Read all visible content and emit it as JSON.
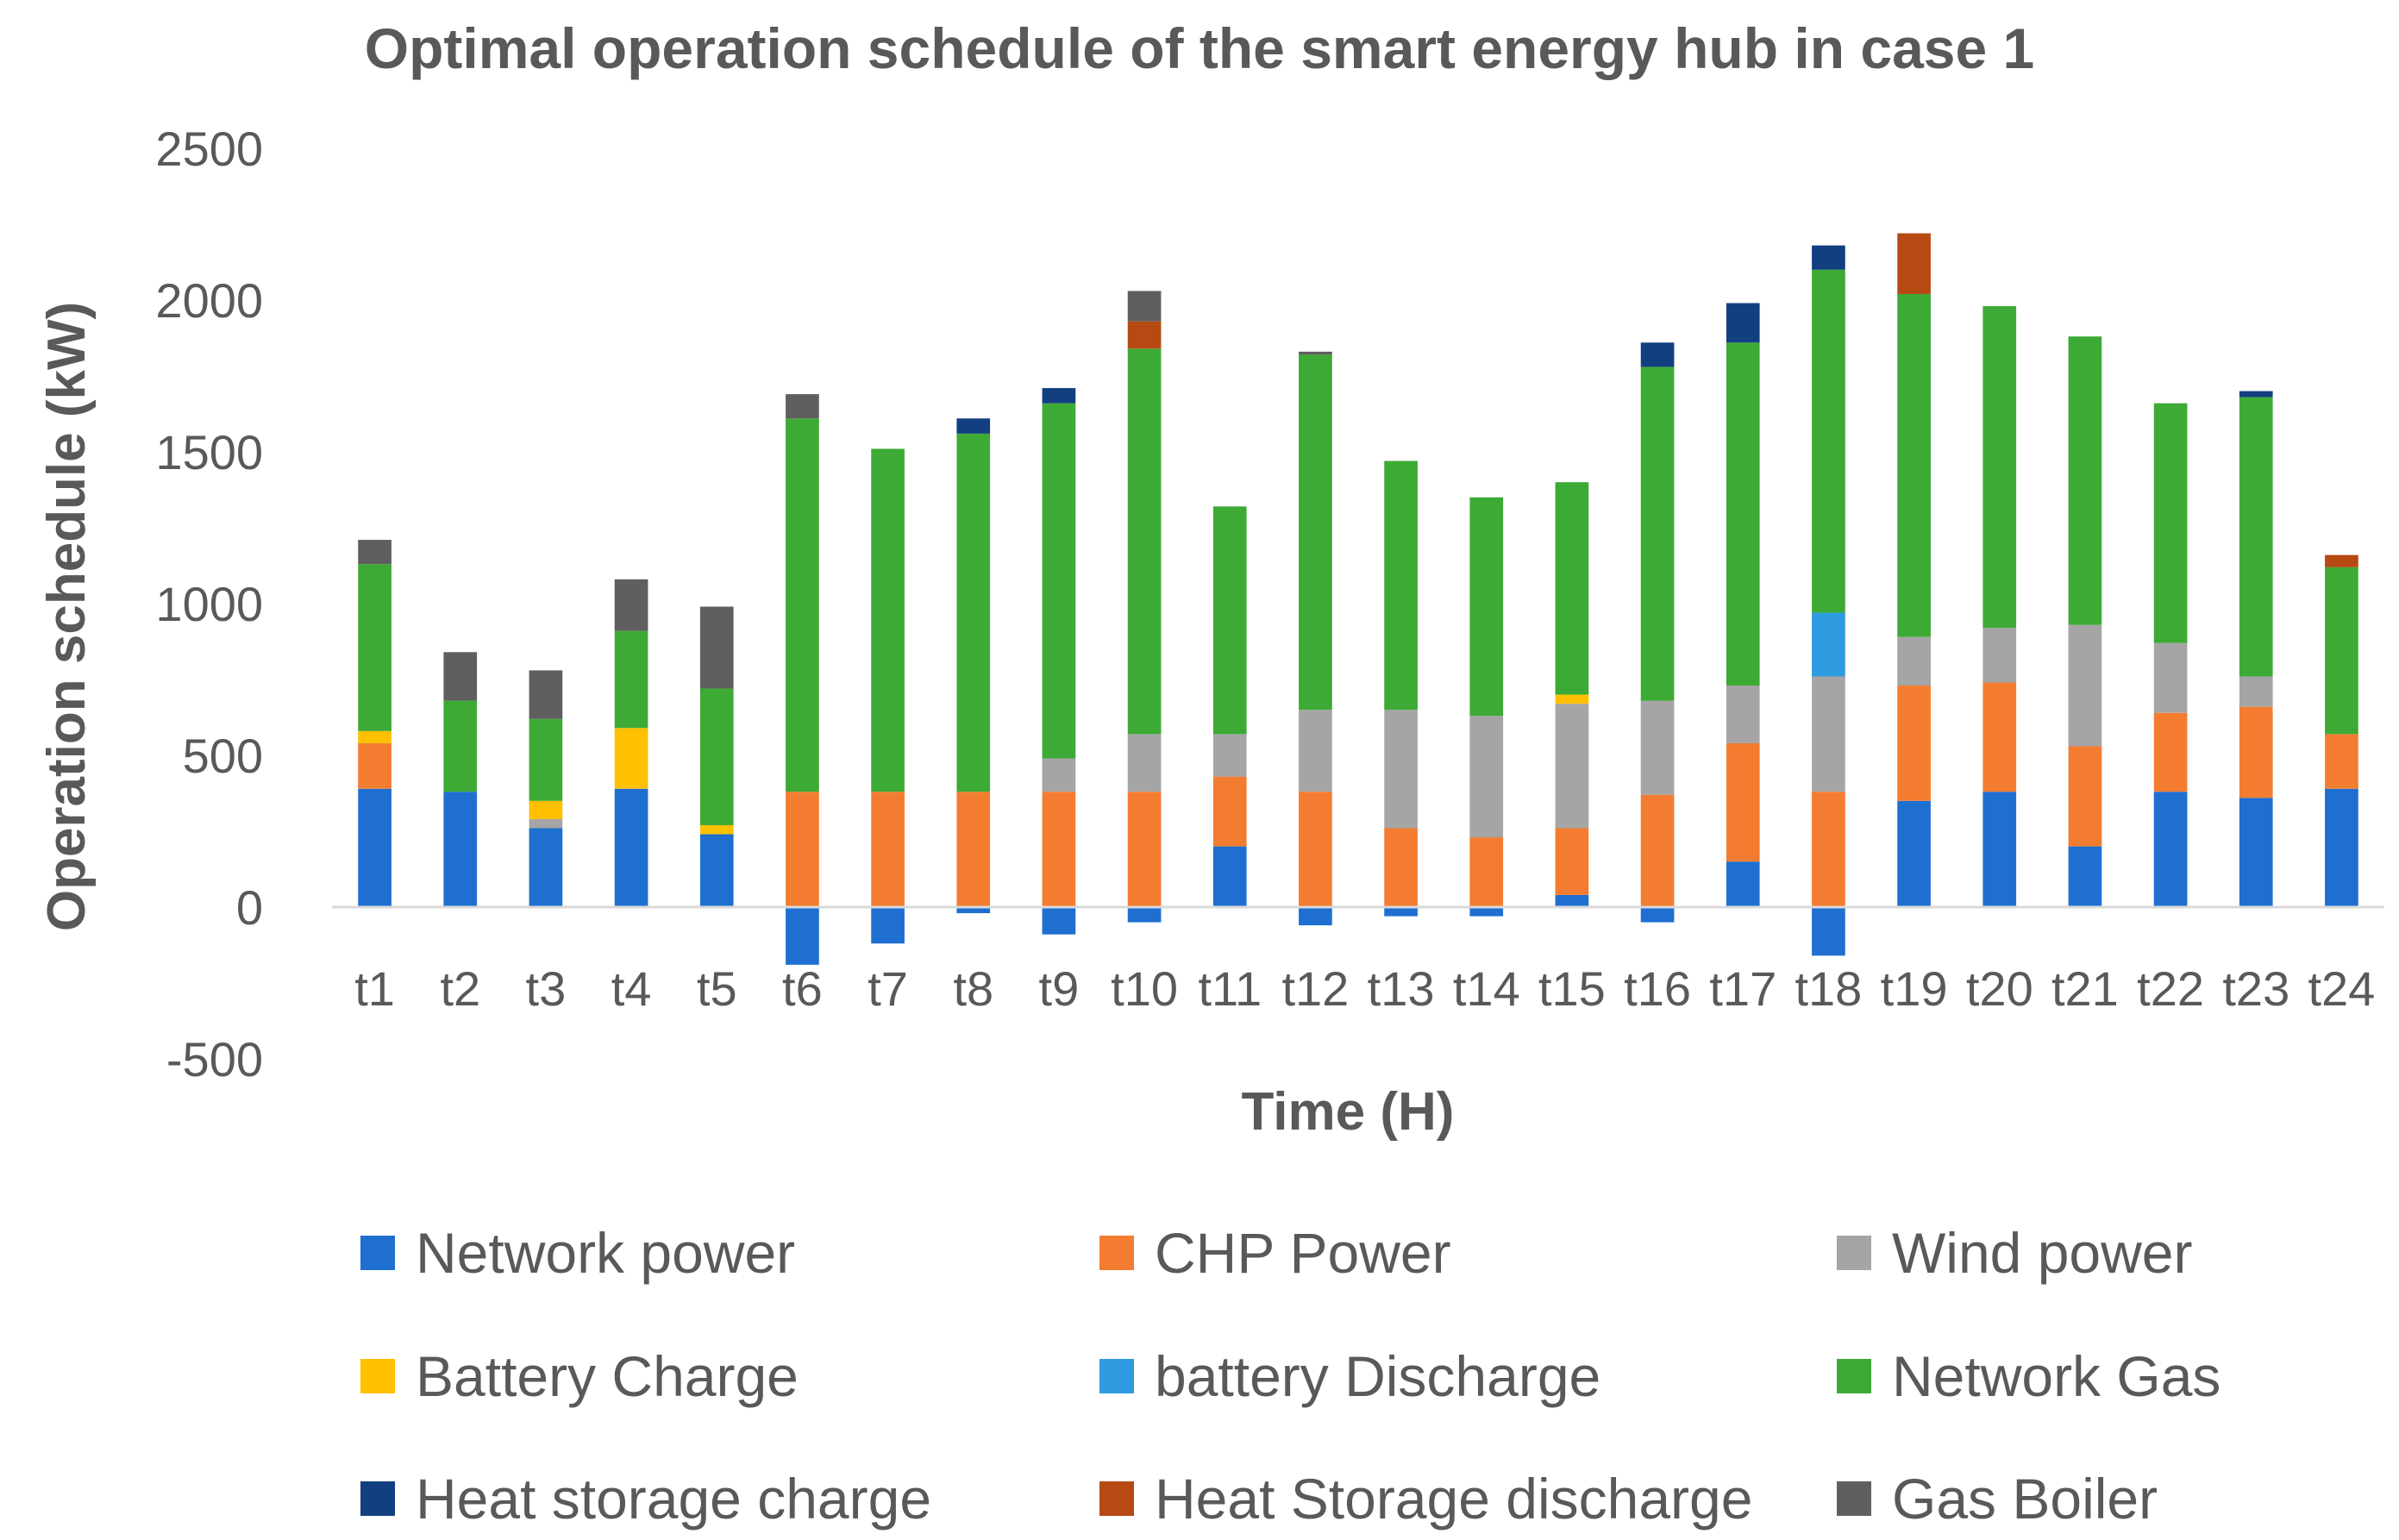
{
  "chart_data": {
    "type": "bar",
    "stacked": true,
    "title": "Optimal operation schedule of the smart energy hub in case 1",
    "xlabel": "Time (H)",
    "ylabel": "Operation schedule (kW)",
    "ylim": [
      -500,
      2500
    ],
    "yticks": [
      -500,
      0,
      500,
      1000,
      1500,
      2000,
      2500
    ],
    "grid": false,
    "legend_position": "bottom",
    "categories": [
      "t1",
      "t2",
      "t3",
      "t4",
      "t5",
      "t6",
      "t7",
      "t8",
      "t9",
      "t10",
      "t11",
      "t12",
      "t13",
      "t14",
      "t15",
      "t16",
      "t17",
      "t18",
      "t19",
      "t20",
      "t21",
      "t22",
      "t23",
      "t24"
    ],
    "series": [
      {
        "name": "Network power",
        "color": "#1F6FD1",
        "values": [
          390,
          380,
          260,
          390,
          240,
          -190,
          -120,
          -20,
          -90,
          -50,
          200,
          -60,
          -30,
          -30,
          40,
          -50,
          150,
          -160,
          350,
          380,
          200,
          380,
          360,
          390
        ]
      },
      {
        "name": "CHP Power",
        "color": "#F47C30",
        "values": [
          150,
          0,
          0,
          0,
          0,
          380,
          380,
          380,
          380,
          380,
          230,
          380,
          260,
          230,
          220,
          370,
          390,
          380,
          380,
          360,
          330,
          260,
          300,
          180
        ]
      },
      {
        "name": "Wind power",
        "color": "#A5A5A5",
        "values": [
          0,
          0,
          30,
          0,
          0,
          0,
          0,
          0,
          110,
          190,
          140,
          270,
          390,
          400,
          410,
          310,
          190,
          380,
          160,
          180,
          400,
          230,
          100,
          0
        ]
      },
      {
        "name": "Battery Charge",
        "color": "#FFC000",
        "values": [
          40,
          0,
          60,
          200,
          30,
          0,
          0,
          0,
          0,
          0,
          0,
          0,
          0,
          0,
          30,
          0,
          0,
          0,
          0,
          0,
          0,
          0,
          0,
          0
        ]
      },
      {
        "name": "battery Discharge",
        "color": "#2E9BE0",
        "values": [
          0,
          0,
          0,
          0,
          0,
          0,
          0,
          0,
          0,
          0,
          0,
          0,
          0,
          0,
          0,
          0,
          0,
          210,
          0,
          0,
          0,
          0,
          0,
          0
        ]
      },
      {
        "name": "Network Gas",
        "color": "#3DAA35",
        "values": [
          550,
          300,
          270,
          320,
          450,
          1230,
          1130,
          1180,
          1170,
          1270,
          750,
          1170,
          820,
          720,
          700,
          1100,
          1130,
          1130,
          1130,
          1060,
          950,
          790,
          920,
          550
        ]
      },
      {
        "name": "Heat storage charge",
        "color": "#123F80",
        "values": [
          0,
          0,
          0,
          0,
          0,
          0,
          0,
          50,
          50,
          0,
          0,
          0,
          0,
          0,
          0,
          80,
          130,
          80,
          0,
          0,
          0,
          0,
          20,
          0
        ]
      },
      {
        "name": "Heat Storage discharge",
        "color": "#B64A12",
        "values": [
          0,
          0,
          0,
          0,
          0,
          0,
          0,
          0,
          0,
          90,
          0,
          0,
          0,
          0,
          0,
          0,
          0,
          0,
          200,
          0,
          0,
          0,
          0,
          40
        ]
      },
      {
        "name": "Gas Boiler",
        "color": "#5F5F5F",
        "values": [
          80,
          160,
          160,
          170,
          270,
          80,
          0,
          0,
          0,
          100,
          0,
          10,
          0,
          0,
          0,
          0,
          0,
          0,
          0,
          0,
          0,
          0,
          0,
          0
        ]
      }
    ]
  }
}
